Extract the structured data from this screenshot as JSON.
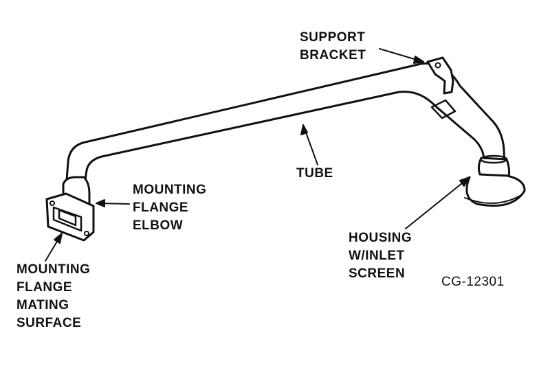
{
  "labels": {
    "support_bracket": [
      "SUPPORT",
      "BRACKET"
    ],
    "tube": "TUBE",
    "mounting_flange_elbow": [
      "MOUNTING",
      "FLANGE",
      "ELBOW"
    ],
    "mounting_flange_mating_surface": [
      "MOUNTING",
      "FLANGE",
      "MATING",
      "SURFACE"
    ],
    "housing_inlet_screen": [
      "HOUSING",
      "W/INLET",
      "SCREEN"
    ],
    "figure_code": "CG-12301"
  },
  "colors": {
    "ink": "#111111",
    "paper": "#ffffff"
  }
}
